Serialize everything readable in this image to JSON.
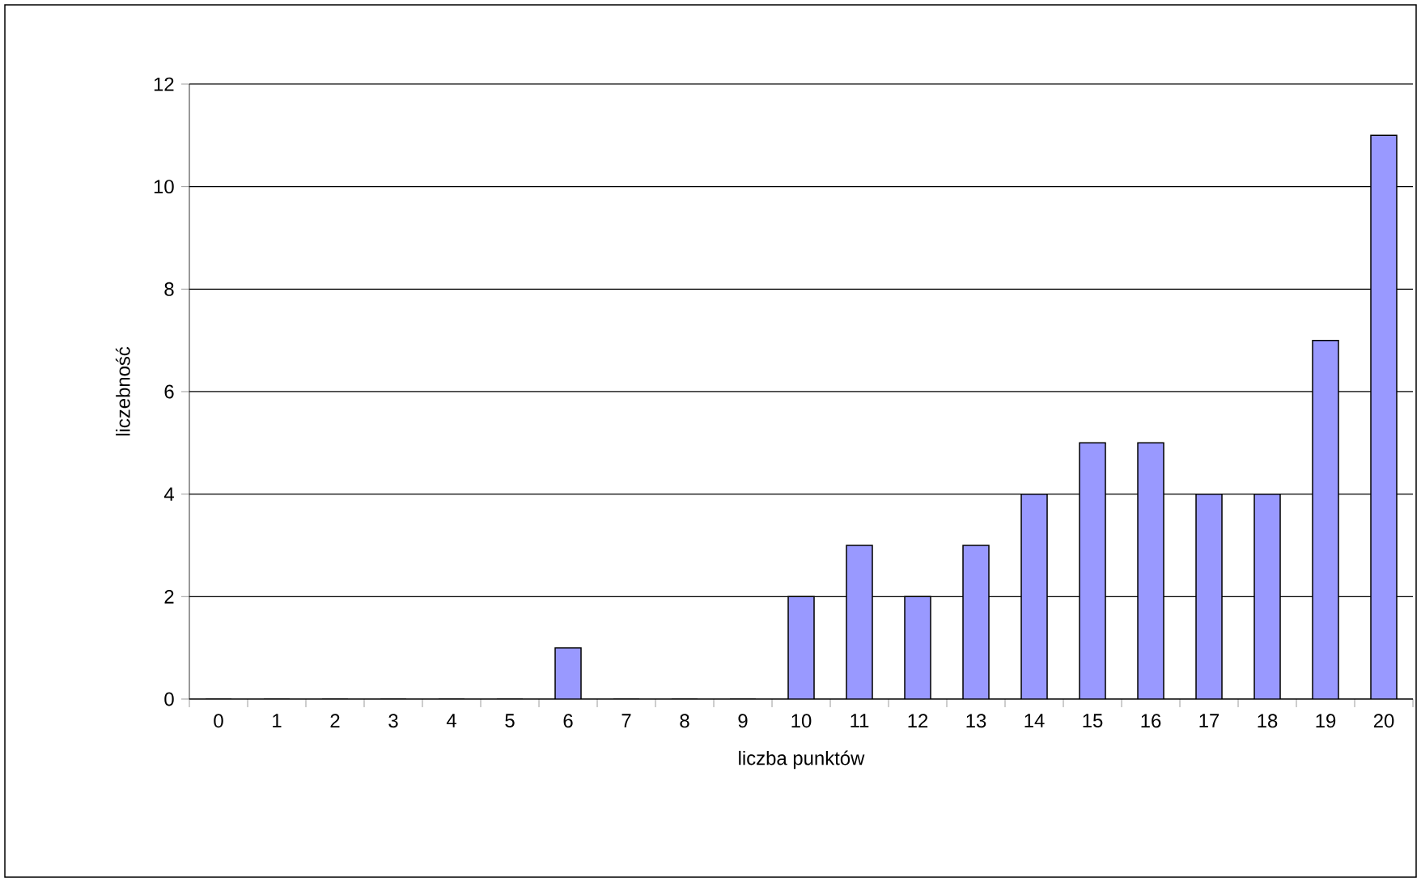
{
  "chart_data": {
    "type": "bar",
    "xlabel": "liczba punktów",
    "ylabel": "liczebność",
    "categories": [
      "0",
      "1",
      "2",
      "3",
      "4",
      "5",
      "6",
      "7",
      "8",
      "9",
      "10",
      "11",
      "12",
      "13",
      "14",
      "15",
      "16",
      "17",
      "18",
      "19",
      "20"
    ],
    "values": [
      0,
      0,
      0,
      0,
      0,
      0,
      1,
      0,
      0,
      0,
      2,
      3,
      2,
      3,
      4,
      5,
      5,
      4,
      4,
      7,
      11
    ],
    "color": "#9999ff",
    "ylim": [
      0,
      12
    ],
    "yticks": [
      0,
      2,
      4,
      6,
      8,
      10,
      12
    ],
    "grid": "y"
  }
}
